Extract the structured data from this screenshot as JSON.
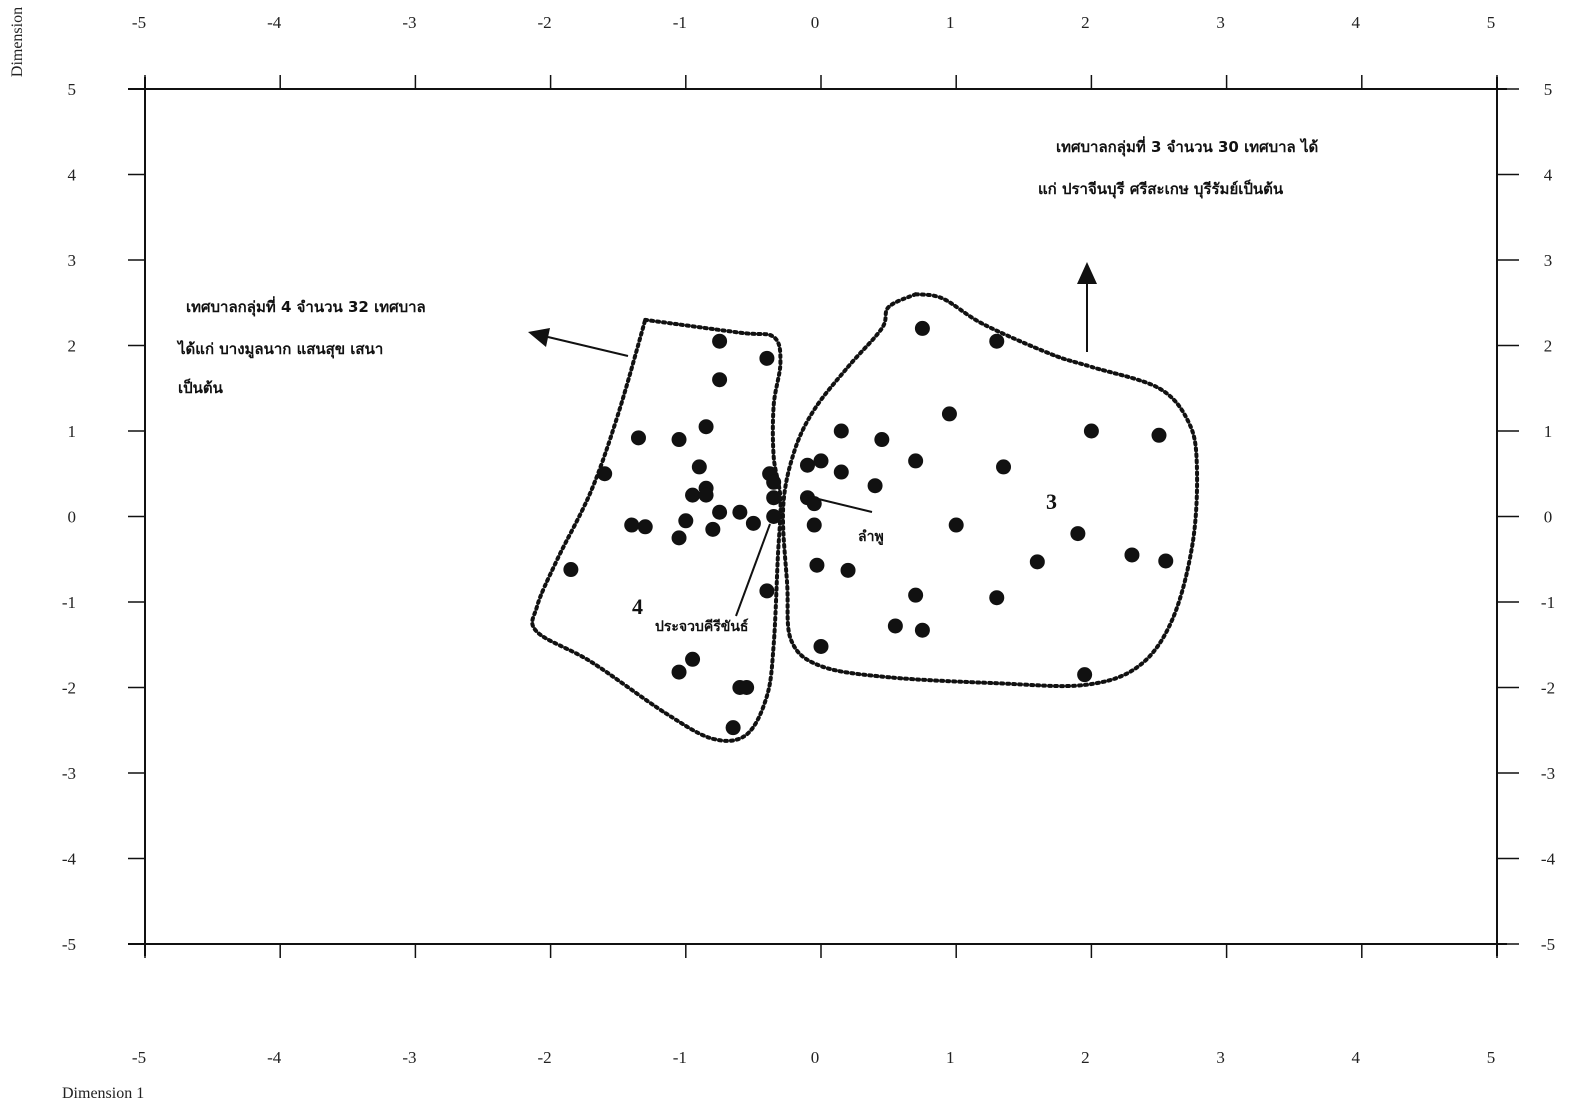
{
  "chart_data": {
    "type": "scatter",
    "xlabel": "Dimension 1",
    "ylabel": "Dimension",
    "xlim": [
      -5,
      5
    ],
    "ylim": [
      -5,
      5
    ],
    "x_ticks": [
      -5,
      -4,
      -3,
      -2,
      -1,
      0,
      1,
      2,
      3,
      4,
      5
    ],
    "y_ticks": [
      -5,
      -4,
      -3,
      -2,
      -1,
      0,
      1,
      2,
      3,
      4,
      5
    ],
    "grid": false,
    "points": [
      {
        "x": 0.75,
        "y": 2.2
      },
      {
        "x": 1.3,
        "y": 2.05
      },
      {
        "x": 0.95,
        "y": 1.2
      },
      {
        "x": 2.0,
        "y": 1.0
      },
      {
        "x": 2.5,
        "y": 0.95
      },
      {
        "x": 0.15,
        "y": 1.0
      },
      {
        "x": 0.45,
        "y": 0.9
      },
      {
        "x": 0.7,
        "y": 0.65
      },
      {
        "x": 1.35,
        "y": 0.58
      },
      {
        "x": -0.1,
        "y": 0.6
      },
      {
        "x": 0.0,
        "y": 0.65
      },
      {
        "x": 0.15,
        "y": 0.52
      },
      {
        "x": 0.4,
        "y": 0.36
      },
      {
        "x": -0.1,
        "y": 0.22
      },
      {
        "x": -0.05,
        "y": 0.15
      },
      {
        "x": -0.05,
        "y": -0.1
      },
      {
        "x": 1.0,
        "y": -0.1
      },
      {
        "x": 1.9,
        "y": -0.2
      },
      {
        "x": 2.3,
        "y": -0.45
      },
      {
        "x": 2.55,
        "y": -0.52
      },
      {
        "x": 1.6,
        "y": -0.53
      },
      {
        "x": -0.03,
        "y": -0.57
      },
      {
        "x": 0.2,
        "y": -0.63
      },
      {
        "x": 0.7,
        "y": -0.92
      },
      {
        "x": 1.3,
        "y": -0.95
      },
      {
        "x": 0.55,
        "y": -1.28
      },
      {
        "x": 0.75,
        "y": -1.33
      },
      {
        "x": 0.0,
        "y": -1.52
      },
      {
        "x": 1.95,
        "y": -1.85
      },
      {
        "x": -0.75,
        "y": 2.05
      },
      {
        "x": -0.4,
        "y": 1.85
      },
      {
        "x": -0.75,
        "y": 1.6
      },
      {
        "x": -0.85,
        "y": 1.05
      },
      {
        "x": -1.35,
        "y": 0.92
      },
      {
        "x": -1.05,
        "y": 0.9
      },
      {
        "x": -1.6,
        "y": 0.5
      },
      {
        "x": -0.9,
        "y": 0.58
      },
      {
        "x": -0.38,
        "y": 0.5
      },
      {
        "x": -0.35,
        "y": 0.4
      },
      {
        "x": -0.85,
        "y": 0.33
      },
      {
        "x": -0.95,
        "y": 0.25
      },
      {
        "x": -0.85,
        "y": 0.25
      },
      {
        "x": -0.35,
        "y": 0.22
      },
      {
        "x": -0.75,
        "y": 0.05
      },
      {
        "x": -0.6,
        "y": 0.05
      },
      {
        "x": -0.35,
        "y": 0.0
      },
      {
        "x": -1.0,
        "y": -0.05
      },
      {
        "x": -0.5,
        "y": -0.08
      },
      {
        "x": -1.4,
        "y": -0.1
      },
      {
        "x": -1.3,
        "y": -0.12
      },
      {
        "x": -0.8,
        "y": -0.15
      },
      {
        "x": -1.05,
        "y": -0.25
      },
      {
        "x": -1.85,
        "y": -0.62
      },
      {
        "x": -0.4,
        "y": -0.87
      },
      {
        "x": -0.95,
        "y": -1.67
      },
      {
        "x": -1.05,
        "y": -1.82
      },
      {
        "x": -0.6,
        "y": -2.0
      },
      {
        "x": -0.55,
        "y": -2.0
      },
      {
        "x": -0.65,
        "y": -2.47
      }
    ],
    "annotations": {
      "group3_line1": "เทศบาลกลุ่มที่ 3 จำนวน 30 เทศบาล ได้",
      "group3_line2": "แก่ ปราจีนบุรี ศรีสะเกษ บุรีรัมย์เป็นต้น",
      "group4_line1": "เทศบาลกลุ่มที่ 4 จำนวน 32 เทศบาล",
      "group4_line2": "ได้แก่ บางมูลนาก แสนสุข เสนา",
      "group4_line3": "เป็นต้น",
      "cluster3_label": "3",
      "cluster4_label": "4",
      "label_lamphu": "ลำพู",
      "label_prachuap": "ประจวบคีรีขันธ์"
    },
    "cluster3_outline": [
      [
        0.7,
        2.6
      ],
      [
        0.5,
        2.45
      ],
      [
        0.45,
        2.2
      ],
      [
        0.2,
        1.75
      ],
      [
        -0.05,
        1.25
      ],
      [
        -0.2,
        0.75
      ],
      [
        -0.28,
        0.1
      ],
      [
        -0.25,
        -0.8
      ],
      [
        -0.22,
        -1.45
      ],
      [
        0.0,
        -1.75
      ],
      [
        0.5,
        -1.88
      ],
      [
        1.3,
        -1.95
      ],
      [
        1.95,
        -1.97
      ],
      [
        2.35,
        -1.75
      ],
      [
        2.6,
        -1.2
      ],
      [
        2.75,
        -0.3
      ],
      [
        2.78,
        0.6
      ],
      [
        2.72,
        1.1
      ],
      [
        2.5,
        1.5
      ],
      [
        2.0,
        1.75
      ],
      [
        1.7,
        1.9
      ],
      [
        1.2,
        2.25
      ],
      [
        0.9,
        2.55
      ],
      [
        0.7,
        2.6
      ]
    ],
    "cluster4_outline": [
      [
        -1.3,
        2.3
      ],
      [
        -0.6,
        2.15
      ],
      [
        -0.35,
        2.1
      ],
      [
        -0.3,
        1.8
      ],
      [
        -0.35,
        1.3
      ],
      [
        -0.35,
        0.7
      ],
      [
        -0.3,
        0.2
      ],
      [
        -0.32,
        -0.5
      ],
      [
        -0.35,
        -1.5
      ],
      [
        -0.4,
        -2.1
      ],
      [
        -0.55,
        -2.55
      ],
      [
        -0.8,
        -2.6
      ],
      [
        -1.15,
        -2.3
      ],
      [
        -1.7,
        -1.7
      ],
      [
        -2.1,
        -1.35
      ],
      [
        -2.1,
        -1.05
      ],
      [
        -1.95,
        -0.5
      ],
      [
        -1.7,
        0.3
      ],
      [
        -1.5,
        1.2
      ],
      [
        -1.3,
        2.3
      ]
    ]
  }
}
